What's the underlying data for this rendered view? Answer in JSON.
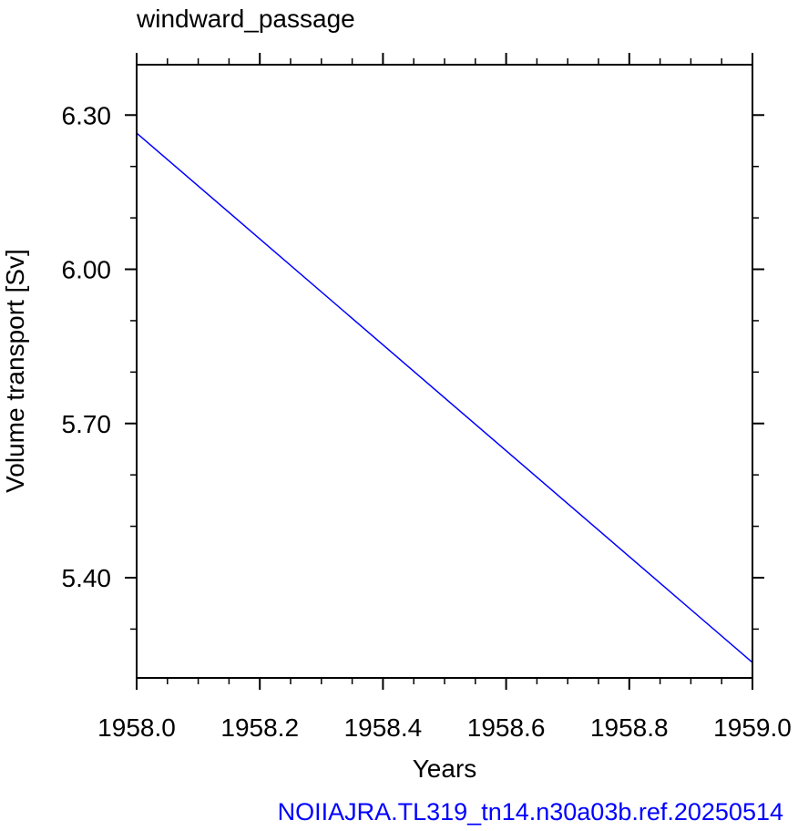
{
  "chart_data": {
    "type": "line",
    "title": "windward_passage",
    "xlabel": "Years",
    "ylabel": "Volume transport [Sv]",
    "xlim": [
      1958.0,
      1959.0
    ],
    "ylim": [
      5.205,
      6.398
    ],
    "x_ticks": [
      1958.0,
      1958.2,
      1958.4,
      1958.6,
      1958.8,
      1959.0
    ],
    "x_tick_labels": [
      "1958.0",
      "1958.2",
      "1958.4",
      "1958.6",
      "1958.8",
      "1959.0"
    ],
    "y_ticks": [
      5.4,
      5.7,
      6.0,
      6.3
    ],
    "y_tick_labels": [
      "5.40",
      "5.70",
      "6.00",
      "6.30"
    ],
    "grid": false,
    "series": [
      {
        "color": "#0000ff",
        "x": [
          1958.0,
          1959.0
        ],
        "y": [
          6.265,
          5.235
        ]
      }
    ]
  },
  "footer": {
    "text": "NOIIAJRA.TL319_tn14.n30a03b.ref.20250514",
    "color": "#0000ff"
  }
}
